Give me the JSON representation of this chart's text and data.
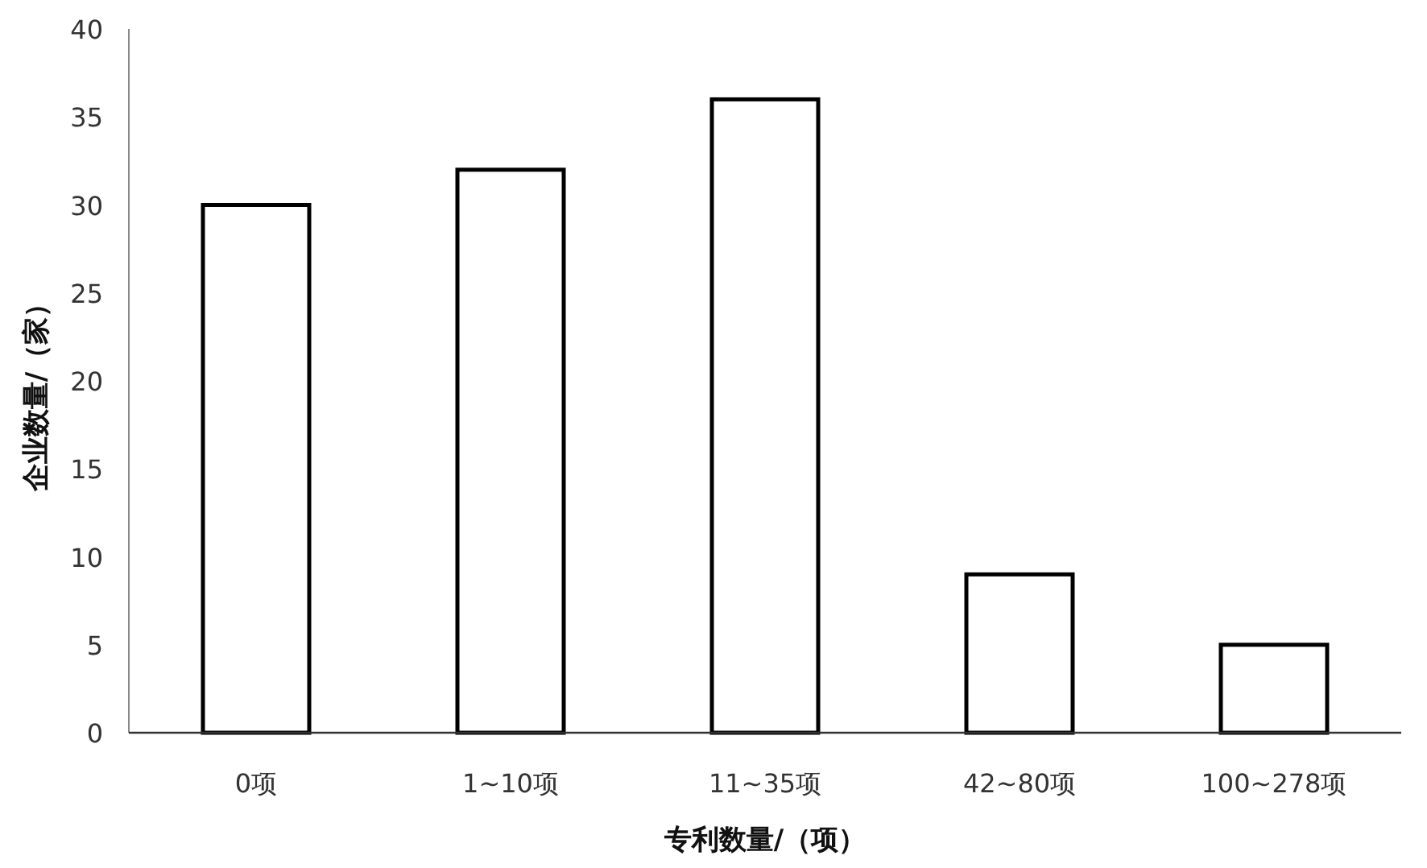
{
  "chart_data": {
    "type": "bar",
    "xlabel": "专利数量/（项）",
    "ylabel": "企业数量/（家）",
    "categories": [
      "0项",
      "1~10项",
      "11~35项",
      "42~80项",
      "100~278项"
    ],
    "values": [
      30,
      32,
      36,
      9,
      5
    ],
    "color": "#ffffff",
    "ylim": [
      0,
      40
    ],
    "yticks": [
      0,
      5,
      10,
      15,
      20,
      25,
      30,
      35,
      40
    ],
    "grid": false,
    "legend": false
  }
}
